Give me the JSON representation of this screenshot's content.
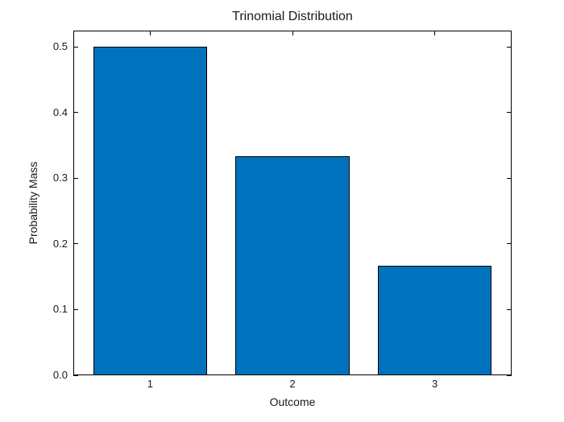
{
  "figure": {
    "background": "#ffffff"
  },
  "chart_data": {
    "type": "bar",
    "title": "Trinomial Distribution",
    "xlabel": "Outcome",
    "ylabel": "Probability Mass",
    "categories": [
      "1",
      "2",
      "3"
    ],
    "x": [
      1,
      2,
      3
    ],
    "values": [
      0.5,
      0.3333,
      0.1667
    ],
    "bar_width": 0.8,
    "bar_color": "#0072bd",
    "bar_edge_color": "#000000",
    "xlim": [
      0.46,
      3.54
    ],
    "ylim": [
      0,
      0.525
    ],
    "yticks": [
      0,
      0.1,
      0.2,
      0.3,
      0.4,
      0.5
    ],
    "ytick_labels": [
      "0.0",
      "0.1",
      "0.2",
      "0.3",
      "0.4",
      "0.5"
    ],
    "grid": false,
    "legend": null,
    "tick_direction": "in",
    "box": true
  }
}
